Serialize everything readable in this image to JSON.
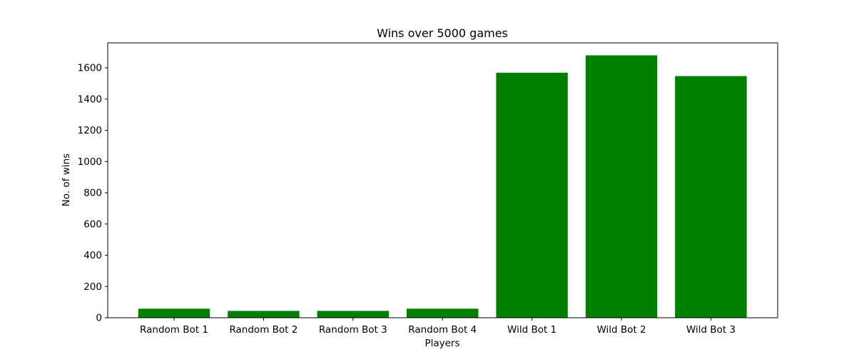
{
  "chart_data": {
    "type": "bar",
    "title": "Wins over 5000 games",
    "xlabel": "Players",
    "ylabel": "No. of wins",
    "categories": [
      "Random Bot 1",
      "Random Bot 2",
      "Random Bot 3",
      "Random Bot 4",
      "Wild Bot 1",
      "Wild Bot 2",
      "Wild Bot 3"
    ],
    "values": [
      58,
      44,
      44,
      58,
      1569,
      1680,
      1547
    ],
    "ylim": [
      0,
      1760
    ],
    "yticks": [
      0,
      200,
      400,
      600,
      800,
      1000,
      1200,
      1400,
      1600
    ],
    "grid": false,
    "legend": "none",
    "bar_color": "#008000"
  }
}
